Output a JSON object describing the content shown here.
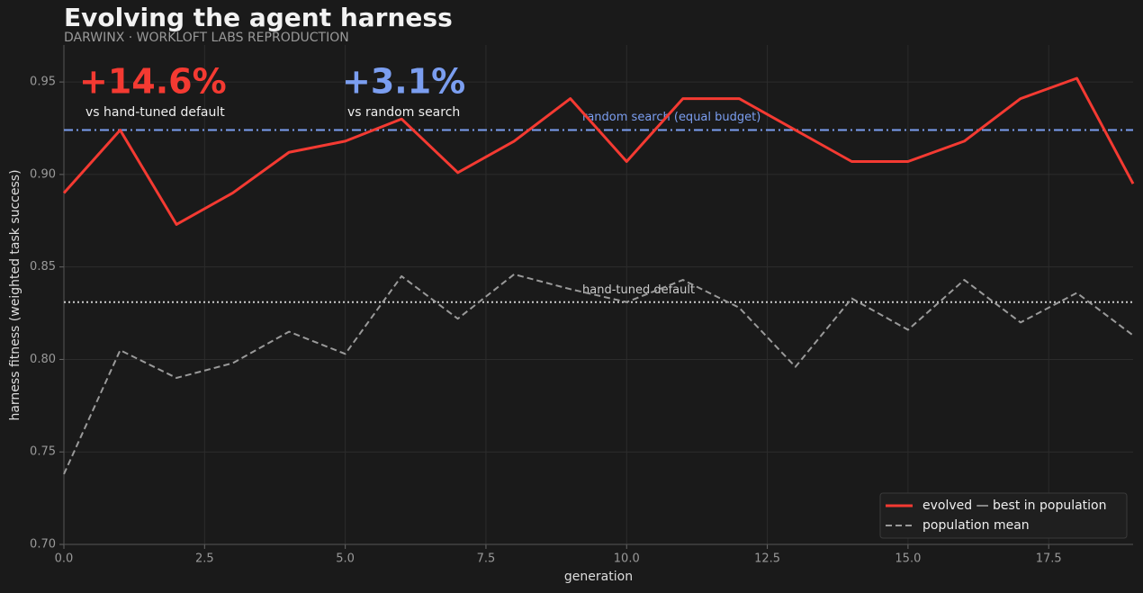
{
  "chart_data": {
    "type": "line",
    "title": "Evolving the agent harness",
    "subtitle": "DARWINX · WORKLOFT LABS REPRODUCTION",
    "x_label": "generation",
    "y_label": "harness fitness (weighted task success)",
    "x": [
      0,
      1,
      2,
      3,
      4,
      5,
      6,
      7,
      8,
      9,
      10,
      11,
      12,
      13,
      14,
      15,
      16,
      17,
      18,
      19
    ],
    "series": [
      {
        "name": "evolved — best in population",
        "color": "#f43a32",
        "style": "solid",
        "values": [
          0.89,
          0.924,
          0.873,
          0.89,
          0.912,
          0.918,
          0.93,
          0.901,
          0.918,
          0.941,
          0.907,
          0.941,
          0.941,
          0.924,
          0.907,
          0.907,
          0.918,
          0.941,
          0.952,
          0.895
        ]
      },
      {
        "name": "population mean",
        "color": "#9a9a9a",
        "style": "dashed",
        "values": [
          0.738,
          0.805,
          0.79,
          0.798,
          0.815,
          0.803,
          0.845,
          0.822,
          0.846,
          0.838,
          0.831,
          0.843,
          0.828,
          0.796,
          0.833,
          0.816,
          0.843,
          0.82,
          0.836,
          0.813
        ]
      }
    ],
    "reference_lines": [
      {
        "name": "random search (equal budget)",
        "value": 0.924,
        "color": "#7b9ef0",
        "style": "dashdot"
      },
      {
        "name": "hand-tuned default",
        "value": 0.831,
        "color": "#cccccc",
        "style": "dotted"
      }
    ],
    "callouts": [
      {
        "value": "+14.6%",
        "label": "vs hand-tuned default",
        "color": "#f43a32"
      },
      {
        "value": "+3.1%",
        "label": "vs random search",
        "color": "#7b9ef0"
      }
    ],
    "xlim": [
      0,
      19
    ],
    "ylim": [
      0.7,
      0.97
    ],
    "xticks": [
      {
        "value": 0,
        "label": "0.0"
      },
      2.5,
      {
        "value": 5,
        "label": "5.0"
      },
      7.5,
      {
        "value": 10,
        "label": "10.0"
      },
      12.5,
      {
        "value": 15,
        "label": "15.0"
      },
      17.5
    ],
    "yticks": [
      {
        "value": 0.7,
        "label": "0.70"
      },
      0.75,
      {
        "value": 0.8,
        "label": "0.80"
      },
      0.85,
      {
        "value": 0.9,
        "label": "0.90"
      },
      0.95
    ],
    "grid": true,
    "legend": "lower right"
  }
}
